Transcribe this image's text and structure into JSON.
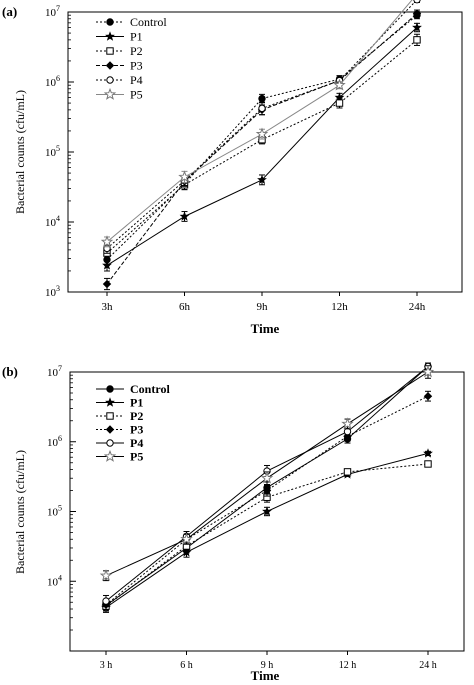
{
  "chart_data": [
    {
      "type": "line",
      "panel_label": "(a)",
      "xlabel": "Time",
      "ylabel": "Bacterial counts (cfu/mL)",
      "categories": [
        "3h",
        "6h",
        "9h",
        "12h",
        "24h"
      ],
      "yscale": "log",
      "ylim": [
        1000,
        10000000
      ],
      "yticks": [
        1000,
        10000,
        100000,
        1000000,
        10000000
      ],
      "yticklabels": [
        {
          "base": "10",
          "exp": "3"
        },
        {
          "base": "10",
          "exp": "4"
        },
        {
          "base": "10",
          "exp": "5"
        },
        {
          "base": "10",
          "exp": "6"
        },
        {
          "base": "10",
          "exp": "7"
        }
      ],
      "legend_position": "top-left",
      "grid": false,
      "series": [
        {
          "name": "Control",
          "marker": "filled-circle",
          "dash": "dotted",
          "values": [
            2900,
            35000,
            580000,
            1100000,
            9000000
          ],
          "errors": [
            0.08,
            0.08,
            0.06,
            0.05,
            0.05
          ]
        },
        {
          "name": "P1",
          "marker": "filled-star",
          "dash": "solid",
          "values": [
            2400,
            12000,
            40000,
            600000,
            6000000
          ],
          "errors": [
            0.08,
            0.07,
            0.07,
            0.06,
            0.06
          ]
        },
        {
          "name": "P2",
          "marker": "open-square",
          "dash": "dotted",
          "values": [
            3600,
            34000,
            150000,
            500000,
            4000000
          ],
          "errors": [
            0.08,
            0.07,
            0.06,
            0.07,
            0.08
          ]
        },
        {
          "name": "P3",
          "marker": "filled-diamond",
          "dash": "dashed",
          "values": [
            1300,
            38000,
            400000,
            1050000,
            9500000
          ],
          "errors": [
            0.08,
            0.07,
            0.07,
            0.05,
            0.05
          ]
        },
        {
          "name": "P4",
          "marker": "open-circle",
          "dash": "dotted",
          "values": [
            4200,
            39000,
            420000,
            1050000,
            15000000
          ],
          "errors": [
            0.07,
            0.07,
            0.09,
            0.05,
            0.04
          ]
        },
        {
          "name": "P5",
          "marker": "open-star",
          "dash": "solid-gray",
          "values": [
            5200,
            44000,
            180000,
            900000,
            18000000
          ],
          "errors": [
            0.07,
            0.08,
            0.07,
            0.05,
            0.03
          ]
        }
      ]
    },
    {
      "type": "line",
      "panel_label": "(b)",
      "xlabel": "Time",
      "ylabel": "Bacterial counts (cfu/mL)",
      "categories": [
        "3 h",
        "6 h",
        "9 h",
        "12 h",
        "24 h"
      ],
      "yscale": "log",
      "ylim": [
        1000,
        10000000
      ],
      "yticks": [
        10000,
        100000,
        1000000,
        10000000
      ],
      "yticklabels": [
        {
          "base": "10",
          "exp": "4"
        },
        {
          "base": "10",
          "exp": "5"
        },
        {
          "base": "10",
          "exp": "6"
        },
        {
          "base": "10",
          "exp": "7"
        }
      ],
      "legend_position": "top-left",
      "grid": false,
      "series": [
        {
          "name": "Control",
          "marker": "filled-circle",
          "dash": "solid",
          "values": [
            4500,
            30000,
            220000,
            1100000,
            12000000
          ],
          "errors": [
            0.08,
            0.07,
            0.08,
            0.06,
            0.03
          ]
        },
        {
          "name": "P1",
          "marker": "filled-star",
          "dash": "solid",
          "values": [
            4200,
            26000,
            100000,
            340000,
            680000
          ],
          "errors": [
            0.07,
            0.07,
            0.06,
            0.03,
            0.03
          ]
        },
        {
          "name": "P2",
          "marker": "open-square",
          "dash": "dotted",
          "values": [
            4400,
            32000,
            160000,
            370000,
            480000
          ],
          "errors": [
            0.07,
            0.07,
            0.07,
            0.04,
            0.03
          ]
        },
        {
          "name": "P3",
          "marker": "filled-diamond",
          "dash": "dotted",
          "values": [
            4600,
            40000,
            200000,
            1200000,
            4500000
          ],
          "errors": [
            0.07,
            0.07,
            0.08,
            0.07,
            0.07
          ]
        },
        {
          "name": "P4",
          "marker": "open-circle",
          "dash": "solid",
          "values": [
            5200,
            44000,
            380000,
            1400000,
            12000000
          ],
          "errors": [
            0.08,
            0.07,
            0.08,
            0.07,
            0.05
          ]
        },
        {
          "name": "P5",
          "marker": "open-star",
          "dash": "solid",
          "values": [
            12000,
            40000,
            300000,
            1800000,
            10000000
          ],
          "errors": [
            0.07,
            0.07,
            0.09,
            0.07,
            0.09
          ]
        }
      ]
    }
  ]
}
